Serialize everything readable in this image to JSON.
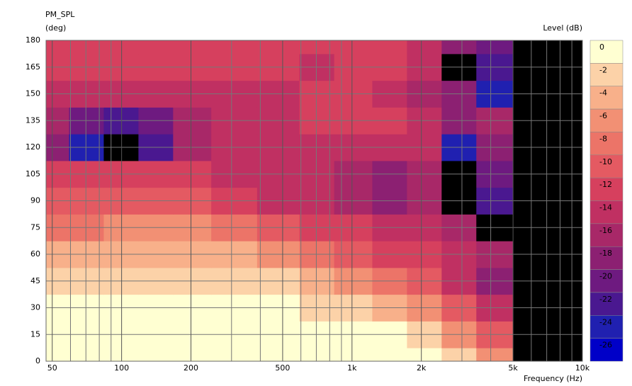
{
  "chart_data": {
    "type": "heatmap",
    "title": "PM_SPL",
    "y_label": "(deg)",
    "x_label": "Frequency (Hz)",
    "colorbar_label": "Level (dB)",
    "log_x": true,
    "grid": true,
    "xlim": [
      47,
      10000
    ],
    "ylim": [
      0,
      180
    ],
    "xticks": [
      50,
      100,
      200,
      500,
      {
        "value": 1000,
        "label": "1k"
      },
      {
        "value": 2000,
        "label": "2k"
      },
      {
        "value": 5000,
        "label": "5k"
      },
      {
        "value": 10000,
        "label": "10k"
      }
    ],
    "xminor": [
      60,
      70,
      80,
      90,
      300,
      400,
      600,
      700,
      800,
      900,
      3000,
      4000,
      6000,
      7000,
      8000,
      9000
    ],
    "yticks": [
      0,
      15,
      30,
      45,
      60,
      75,
      90,
      105,
      120,
      135,
      150,
      165,
      180
    ],
    "x": [
      50,
      70,
      100,
      140,
      200,
      300,
      500,
      700,
      1000,
      1500,
      2000,
      3000,
      4000,
      6250
    ],
    "y": [
      0,
      15,
      30,
      45,
      60,
      75,
      90,
      105,
      120,
      135,
      150,
      165,
      180
    ],
    "z": [
      [
        0,
        0,
        0,
        0,
        0,
        0,
        0,
        0,
        0,
        0,
        0,
        -2,
        -6,
        null
      ],
      [
        0,
        0,
        0,
        0,
        0,
        0,
        0,
        0,
        0,
        0,
        -2,
        -6,
        -10,
        null
      ],
      [
        0,
        0,
        0,
        0,
        0,
        0,
        0,
        -2,
        -2,
        -4,
        -6,
        -10,
        -14,
        null
      ],
      [
        -2,
        -2,
        -2,
        -2,
        -2,
        -2,
        -2,
        -4,
        -6,
        -8,
        -10,
        -14,
        -18,
        null
      ],
      [
        -4,
        -4,
        -4,
        -4,
        -4,
        -4,
        -6,
        -8,
        -10,
        -12,
        -12,
        -14,
        -16,
        null
      ],
      [
        -8,
        -8,
        -6,
        -6,
        -6,
        -8,
        -10,
        -12,
        -12,
        -14,
        -14,
        -16,
        -28,
        null
      ],
      [
        -10,
        -10,
        -10,
        -10,
        -10,
        -12,
        -14,
        -14,
        -16,
        -18,
        -16,
        -28,
        -22,
        null
      ],
      [
        -12,
        -12,
        -12,
        -12,
        -12,
        -14,
        -14,
        -14,
        -16,
        -18,
        -16,
        -28,
        -20,
        null
      ],
      [
        -18,
        -24,
        -28,
        -22,
        -16,
        -14,
        -14,
        -14,
        -14,
        -14,
        -14,
        -24,
        -18,
        null
      ],
      [
        -16,
        -20,
        -22,
        -20,
        -16,
        -14,
        -14,
        -12,
        -12,
        -12,
        -14,
        -18,
        -16,
        null
      ],
      [
        -14,
        -14,
        -14,
        -14,
        -14,
        -14,
        -14,
        -12,
        -12,
        -14,
        -16,
        -18,
        -24,
        null
      ],
      [
        -12,
        -12,
        -12,
        -12,
        -12,
        -12,
        -12,
        -14,
        -12,
        -12,
        -14,
        -28,
        -22,
        null
      ],
      [
        -12,
        -12,
        -12,
        -12,
        -12,
        -12,
        -12,
        -12,
        -12,
        -12,
        -14,
        -18,
        -20,
        null
      ]
    ],
    "levels": [
      0,
      -2,
      -4,
      -6,
      -8,
      -10,
      -12,
      -14,
      -16,
      -18,
      -20,
      -22,
      -24,
      -26
    ],
    "level_colors": [
      "#ffffd2",
      "#fcd2a8",
      "#f8b08a",
      "#f29074",
      "#ec7468",
      "#e45a62",
      "#d6405e",
      "#c03062",
      "#a82868",
      "#8c2072",
      "#6e1a80",
      "#4a1890",
      "#2020b0",
      "#0000c8"
    ],
    "below_color": "#000000",
    "null_color": "#000000"
  }
}
